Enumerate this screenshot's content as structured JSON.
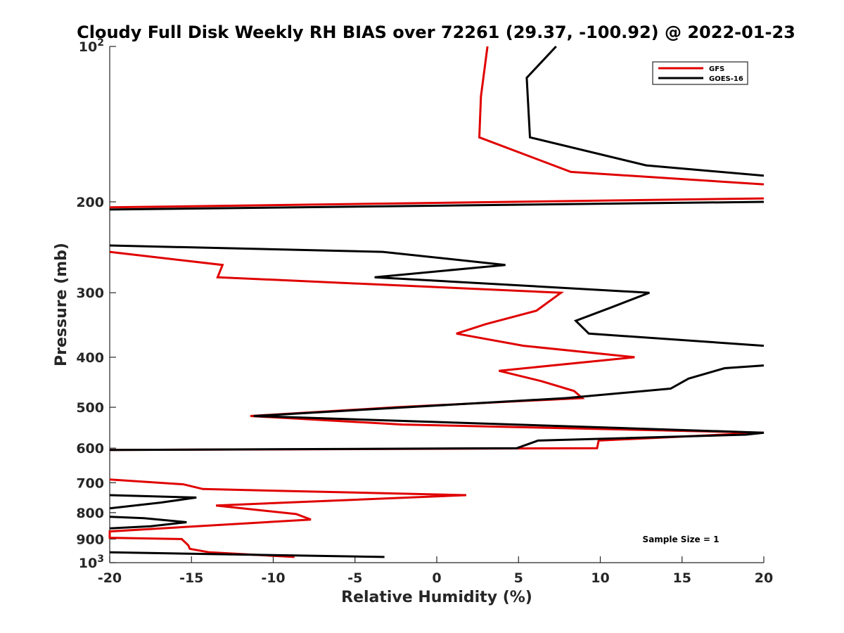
{
  "chart_data": {
    "type": "line",
    "title": "Cloudy Full Disk Weekly RH BIAS over 72261 (29.37, -100.92) @ 2022-01-23",
    "xlabel": "Relative Humidity (%)",
    "ylabel": "Pressure (mb)",
    "xlim": [
      -20,
      20
    ],
    "ylim": [
      100,
      1000
    ],
    "y_scale": "log",
    "y_reversed": true,
    "grid": false,
    "legend_position": "top-right",
    "x_ticks": [
      "-20",
      "-15",
      "-10",
      "-5",
      "0",
      "5",
      "10",
      "15",
      "20"
    ],
    "x_tick_values": [
      -20,
      -15,
      -10,
      -5,
      0,
      5,
      10,
      15,
      20
    ],
    "y_ticks": [
      {
        "value": 100,
        "base": "10",
        "exp": "2"
      },
      {
        "value": 200,
        "label": "200"
      },
      {
        "value": 300,
        "label": "300"
      },
      {
        "value": 400,
        "label": "400"
      },
      {
        "value": 500,
        "label": "500"
      },
      {
        "value": 600,
        "label": "600"
      },
      {
        "value": 700,
        "label": "700"
      },
      {
        "value": 800,
        "label": "800"
      },
      {
        "value": 900,
        "label": "900"
      },
      {
        "value": 1000,
        "base": "10",
        "exp": "3"
      }
    ],
    "annotation": "Sample Size = 1",
    "series": [
      {
        "name": "GFS",
        "color": "#e00000",
        "segments": [
          [
            [
              3.1,
              100
            ],
            [
              2.7,
              125
            ],
            [
              2.6,
              150
            ],
            [
              8.2,
              175
            ],
            [
              20,
              185
            ]
          ],
          [
            [
              20,
              197
            ],
            [
              -20,
              205
            ]
          ],
          [
            [
              -20,
              250
            ],
            [
              -13.1,
              265
            ],
            [
              -13.4,
              280
            ],
            [
              7.6,
              300
            ],
            [
              6.1,
              325
            ],
            [
              3.0,
              345
            ],
            [
              1.2,
              360
            ],
            [
              5.3,
              380
            ],
            [
              12.1,
              400
            ],
            [
              3.8,
              425
            ],
            [
              6.4,
              445
            ],
            [
              8.4,
              465
            ],
            [
              8.9,
              480
            ],
            [
              -2.5,
              500
            ],
            [
              -11.4,
              520
            ],
            [
              -2.1,
              540
            ],
            [
              20,
              560
            ],
            [
              9.9,
              580
            ],
            [
              9.8,
              600
            ],
            [
              -20,
              605
            ]
          ],
          [
            [
              -20,
              690
            ],
            [
              -15.5,
              705
            ],
            [
              -14.3,
              720
            ],
            [
              1.8,
              740
            ],
            [
              -13.5,
              775
            ],
            [
              -8.6,
              805
            ],
            [
              -7.7,
              825
            ],
            [
              -20,
              870
            ],
            [
              -20,
              895
            ],
            [
              -15.6,
              900
            ],
            [
              -15.2,
              925
            ],
            [
              -15.1,
              940
            ],
            [
              -13.9,
              955
            ],
            [
              -8.7,
              975
            ]
          ]
        ]
      },
      {
        "name": "GOES-16",
        "color": "#000000",
        "segments": [
          [
            [
              7.3,
              100
            ],
            [
              5.5,
              115
            ],
            [
              5.7,
              150
            ],
            [
              12.8,
              170
            ],
            [
              20,
              178
            ]
          ],
          [
            [
              20,
              200
            ],
            [
              -20,
              207
            ]
          ],
          [
            [
              -20,
              243
            ],
            [
              -3.3,
              250
            ],
            [
              4.2,
              265
            ],
            [
              -3.8,
              280
            ],
            [
              13.0,
              300
            ],
            [
              10.7,
              320
            ],
            [
              8.5,
              340
            ],
            [
              9.3,
              360
            ],
            [
              20,
              380
            ]
          ],
          [
            [
              20,
              415
            ],
            [
              17.6,
              420
            ],
            [
              15.4,
              440
            ],
            [
              14.3,
              460
            ],
            [
              7.9,
              480
            ],
            [
              -11.2,
              520
            ],
            [
              20,
              560
            ],
            [
              18.9,
              565
            ],
            [
              6.2,
              580
            ],
            [
              4.9,
              600
            ],
            [
              -20,
              605
            ]
          ],
          [
            [
              -20,
              740
            ],
            [
              -14.7,
              748
            ],
            [
              -16.9,
              765
            ],
            [
              -20,
              785
            ]
          ],
          [
            [
              -20,
              815
            ],
            [
              -17.9,
              820
            ],
            [
              -15.3,
              835
            ],
            [
              -17.5,
              850
            ],
            [
              -20,
              858
            ]
          ],
          [
            [
              -20,
              955
            ],
            [
              -3.2,
              975
            ]
          ]
        ]
      }
    ]
  }
}
